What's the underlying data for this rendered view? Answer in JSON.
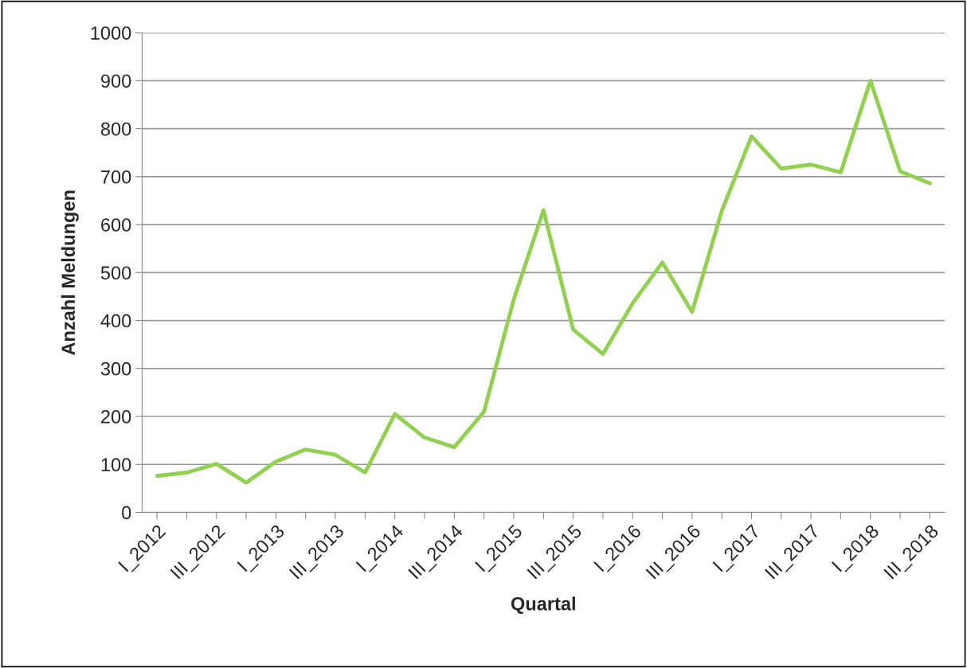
{
  "chart_data": {
    "type": "line",
    "xlabel": "Quartal",
    "ylabel": "Anzahl Meldungen",
    "categories": [
      "I_2012",
      null,
      "III_2012",
      null,
      "I_2013",
      null,
      "III_2013",
      null,
      "I_2014",
      null,
      "III_2014",
      null,
      "I_2015",
      null,
      "III_2015",
      null,
      "I_2016",
      null,
      "III_2016",
      null,
      "I_2017",
      null,
      "III_2017",
      null,
      "I_2018",
      null,
      "III_2018"
    ],
    "series": [
      {
        "color": "#92d050",
        "values": [
          76,
          83,
          101,
          62,
          106,
          131,
          120,
          83,
          205,
          156,
          136,
          210,
          444,
          630,
          381,
          330,
          436,
          521,
          418,
          629,
          784,
          717,
          725,
          709,
          900,
          711,
          686
        ]
      }
    ],
    "ylim": [
      0,
      1000
    ],
    "yticks": [
      0,
      100,
      200,
      300,
      400,
      500,
      600,
      700,
      800,
      900,
      1000
    ],
    "grid": "y",
    "marker": "none",
    "line_style": "solid"
  }
}
